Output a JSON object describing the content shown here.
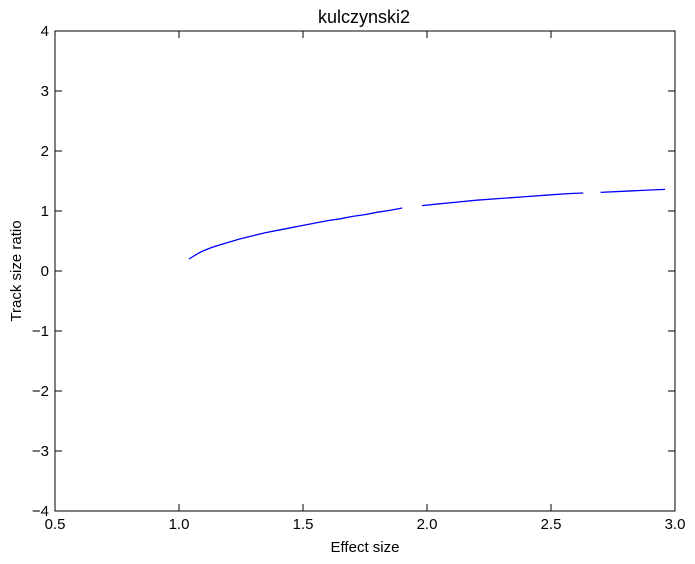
{
  "chart_data": {
    "type": "line",
    "title": "kulczynski2",
    "xlabel": "Effect size",
    "ylabel": "Track size ratio",
    "xlim": [
      0.5,
      3.0
    ],
    "ylim": [
      -4,
      4
    ],
    "xticks": [
      0.5,
      1.0,
      1.5,
      2.0,
      2.5,
      3.0
    ],
    "xtick_labels": [
      "0.5",
      "1.0",
      "1.5",
      "2.0",
      "2.5",
      "3.0"
    ],
    "yticks": [
      4,
      3,
      2,
      1,
      0,
      -1,
      -2,
      -3,
      -4
    ],
    "ytick_labels": [
      "4",
      "3",
      "2",
      "1",
      "0",
      "−1",
      "−2",
      "−3",
      "−4"
    ],
    "grid": false,
    "series": [
      {
        "color": "#0000ff",
        "segments": [
          [
            [
              1.04,
              0.2
            ],
            [
              1.06,
              0.25
            ],
            [
              1.08,
              0.3
            ],
            [
              1.1,
              0.34
            ],
            [
              1.13,
              0.39
            ],
            [
              1.16,
              0.43
            ],
            [
              1.2,
              0.48
            ],
            [
              1.25,
              0.54
            ],
            [
              1.3,
              0.59
            ],
            [
              1.35,
              0.64
            ],
            [
              1.4,
              0.68
            ],
            [
              1.45,
              0.72
            ],
            [
              1.5,
              0.76
            ],
            [
              1.55,
              0.8
            ],
            [
              1.6,
              0.84
            ],
            [
              1.65,
              0.87
            ],
            [
              1.7,
              0.91
            ],
            [
              1.75,
              0.94
            ],
            [
              1.8,
              0.98
            ],
            [
              1.85,
              1.01
            ],
            [
              1.9,
              1.05
            ]
          ],
          [
            [
              1.98,
              1.09
            ],
            [
              2.05,
              1.12
            ],
            [
              2.1,
              1.14
            ],
            [
              2.2,
              1.18
            ],
            [
              2.3,
              1.21
            ],
            [
              2.4,
              1.24
            ],
            [
              2.5,
              1.27
            ],
            [
              2.57,
              1.29
            ],
            [
              2.63,
              1.3
            ]
          ],
          [
            [
              2.7,
              1.31
            ],
            [
              2.8,
              1.33
            ],
            [
              2.9,
              1.35
            ],
            [
              2.96,
              1.36
            ]
          ]
        ]
      }
    ]
  }
}
